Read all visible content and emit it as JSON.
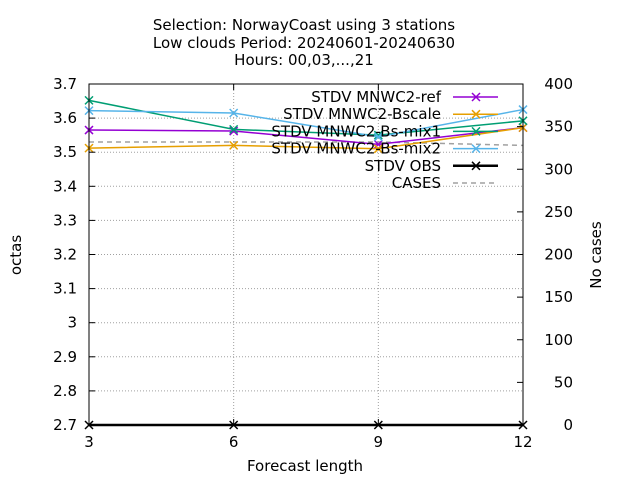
{
  "chart_data": {
    "type": "line",
    "title_lines": [
      "Selection: NorwayCoast using     3 stations",
      "Low clouds   Period: 20240601-20240630",
      "Hours: 00,03,...,21"
    ],
    "xlabel": "Forecast length",
    "ylabel": "octas",
    "y2label": "No cases",
    "x": [
      3,
      6,
      9,
      12
    ],
    "xlim": [
      3,
      12
    ],
    "ylim": [
      2.7,
      3.7
    ],
    "y2lim": [
      0,
      400
    ],
    "xticks": [
      "3",
      "6",
      "9",
      "12"
    ],
    "yticks": [
      "2.7",
      "2.8",
      "2.9",
      "3",
      "3.1",
      "3.2",
      "3.3",
      "3.4",
      "3.5",
      "3.6",
      "3.7"
    ],
    "y2ticks": [
      "0",
      "50",
      "100",
      "150",
      "200",
      "250",
      "300",
      "350",
      "400"
    ],
    "grid": true,
    "legend_position": "top-right",
    "series": [
      {
        "name": "STDV MNWC2-ref",
        "color": "#9400d3",
        "marker": "x",
        "axis": "y",
        "values": [
          3.565,
          3.562,
          3.523,
          3.572
        ]
      },
      {
        "name": "STDV MNWC2-Bscale",
        "color": "#e69f00",
        "marker": "x",
        "axis": "y",
        "values": [
          3.512,
          3.52,
          3.51,
          3.572
        ]
      },
      {
        "name": "STDV MNWC2-Bs-mix1",
        "color": "#009e73",
        "marker": "x",
        "axis": "y",
        "values": [
          3.652,
          3.567,
          3.55,
          3.592
        ]
      },
      {
        "name": "STDV MNWC2-Bs-mix2",
        "color": "#56b4e9",
        "marker": "x",
        "axis": "y",
        "values": [
          3.622,
          3.615,
          3.545,
          3.625
        ]
      },
      {
        "name": "STDV OBS",
        "color": "#000000",
        "marker": "x",
        "axis": "y",
        "values": [
          2.7,
          2.7,
          2.7,
          2.7
        ]
      },
      {
        "name": "CASES",
        "color": "#a0a0a0",
        "marker": "none",
        "dashed": true,
        "axis": "y2",
        "values": [
          332,
          332,
          332,
          328
        ]
      }
    ]
  }
}
